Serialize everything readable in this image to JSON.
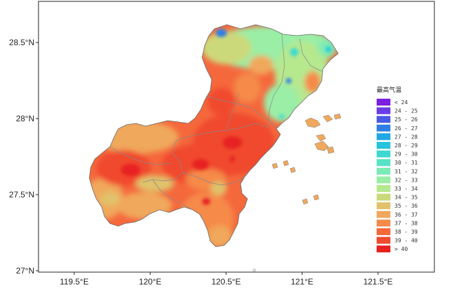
{
  "map": {
    "x_axis": {
      "ticks": [
        {
          "value": 119.5,
          "label": "119.5°E"
        },
        {
          "value": 120.0,
          "label": "120°E"
        },
        {
          "value": 120.5,
          "label": "120.5°E"
        },
        {
          "value": 121.0,
          "label": "121°E"
        },
        {
          "value": 121.5,
          "label": "121.5°E"
        }
      ]
    },
    "y_axis": {
      "ticks": [
        {
          "value": 28.5,
          "label": "28.5°N"
        },
        {
          "value": 28.0,
          "label": "28°N"
        },
        {
          "value": 27.5,
          "label": "27.5°N"
        },
        {
          "value": 27.0,
          "label": "27°N"
        }
      ]
    }
  },
  "legend": {
    "title": "最高气温",
    "items": [
      {
        "label": "< 24",
        "color": "#7b1fe0"
      },
      {
        "label": "24 - 25",
        "color": "#6a3ce8"
      },
      {
        "label": "25 - 26",
        "color": "#4a5ae6"
      },
      {
        "label": "26 - 27",
        "color": "#2f7fe6"
      },
      {
        "label": "27 - 28",
        "color": "#1fa8e4"
      },
      {
        "label": "28 - 29",
        "color": "#24c4dc"
      },
      {
        "label": "29 - 30",
        "color": "#3dd9d0"
      },
      {
        "label": "30 - 31",
        "color": "#56e3c4"
      },
      {
        "label": "31 - 32",
        "color": "#7aeab6"
      },
      {
        "label": "32 - 33",
        "color": "#9aeea6"
      },
      {
        "label": "33 - 34",
        "color": "#b6e88e"
      },
      {
        "label": "34 - 35",
        "color": "#ccd97a"
      },
      {
        "label": "35 - 36",
        "color": "#e0c26c"
      },
      {
        "label": "36 - 37",
        "color": "#f0a85c"
      },
      {
        "label": "37 - 38",
        "color": "#f58a4a"
      },
      {
        "label": "38 - 39",
        "color": "#f5683c"
      },
      {
        "label": "39 - 40",
        "color": "#f04a2e"
      },
      {
        "label": "> 40",
        "color": "#e82020"
      }
    ]
  }
}
